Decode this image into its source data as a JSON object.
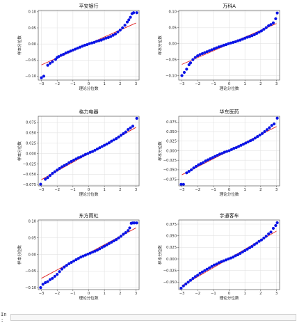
{
  "chart_data": [
    {
      "type": "scatter",
      "title": "平安银行",
      "xlabel": "理论分位数",
      "ylabel": "样本分位数",
      "xlim": [
        -3.2,
        3.2
      ],
      "ylim": [
        -0.112,
        0.104
      ],
      "xticks": [
        -3,
        -2,
        -1,
        0,
        1,
        2,
        3
      ],
      "yticks": [
        -0.1,
        -0.05,
        0.0,
        0.05,
        0.1
      ],
      "ytick_labels": [
        "-0.10",
        "-0.05",
        "0.00",
        "0.05",
        "0.10"
      ],
      "x": [
        -3.0,
        -2.85,
        -2.6,
        -2.45,
        -2.3,
        -2.1,
        -2.0,
        -1.9,
        -1.75,
        -1.6,
        -1.45,
        -1.3,
        -1.15,
        -1.0,
        -0.85,
        -0.7,
        -0.55,
        -0.4,
        -0.25,
        -0.1,
        0.05,
        0.2,
        0.35,
        0.5,
        0.65,
        0.8,
        0.95,
        1.1,
        1.25,
        1.4,
        1.55,
        1.7,
        1.85,
        2.0,
        2.15,
        2.3,
        2.45,
        2.55,
        2.65,
        2.75,
        2.85,
        3.05
      ],
      "y": [
        -0.105,
        -0.1,
        -0.066,
        -0.06,
        -0.055,
        -0.048,
        -0.042,
        -0.039,
        -0.035,
        -0.032,
        -0.028,
        -0.025,
        -0.022,
        -0.019,
        -0.016,
        -0.013,
        -0.01,
        -0.007,
        -0.004,
        -0.002,
        0.001,
        0.003,
        0.005,
        0.008,
        0.01,
        0.012,
        0.015,
        0.018,
        0.02,
        0.023,
        0.027,
        0.031,
        0.037,
        0.043,
        0.05,
        0.058,
        0.068,
        0.075,
        0.083,
        0.094,
        0.097,
        0.097
      ],
      "fit_line": {
        "x": [
          -3,
          3
        ],
        "y": [
          -0.065,
          0.065
        ]
      },
      "colors": {
        "points": "#0a14e6",
        "line": "#e02020"
      }
    },
    {
      "type": "scatter",
      "title": "万科A",
      "xlabel": "理论分位数",
      "ylabel": "样本分位数",
      "xlim": [
        -3.2,
        3.2
      ],
      "ylim": [
        -0.114,
        0.104
      ],
      "xticks": [
        -3,
        -2,
        -1,
        0,
        1,
        2,
        3
      ],
      "yticks": [
        -0.1,
        -0.05,
        0.0,
        0.05,
        0.1
      ],
      "ytick_labels": [
        "-0.10",
        "-0.05",
        "0.00",
        "0.05",
        "0.10"
      ],
      "x": [
        -3.0,
        -2.85,
        -2.7,
        -2.55,
        -2.45,
        -2.3,
        -2.15,
        -2.0,
        -1.85,
        -1.7,
        -1.55,
        -1.4,
        -1.25,
        -1.1,
        -0.95,
        -0.8,
        -0.65,
        -0.5,
        -0.35,
        -0.2,
        -0.05,
        0.1,
        0.25,
        0.4,
        0.55,
        0.7,
        0.85,
        1.0,
        1.15,
        1.3,
        1.45,
        1.6,
        1.75,
        1.9,
        2.05,
        2.2,
        2.35,
        2.5,
        2.65,
        2.8,
        2.95,
        3.05
      ],
      "y": [
        -0.1,
        -0.09,
        -0.08,
        -0.066,
        -0.06,
        -0.05,
        -0.043,
        -0.038,
        -0.034,
        -0.031,
        -0.028,
        -0.025,
        -0.022,
        -0.019,
        -0.016,
        -0.013,
        -0.01,
        -0.008,
        -0.005,
        -0.003,
        0.0,
        0.002,
        0.004,
        0.006,
        0.009,
        0.011,
        0.014,
        0.017,
        0.02,
        0.022,
        0.025,
        0.028,
        0.032,
        0.036,
        0.04,
        0.045,
        0.05,
        0.056,
        0.06,
        0.065,
        0.078,
        0.096
      ],
      "fit_line": {
        "x": [
          -3,
          3
        ],
        "y": [
          -0.065,
          0.063
        ]
      },
      "colors": {
        "points": "#0a14e6",
        "line": "#e02020"
      }
    },
    {
      "type": "scatter",
      "title": "格力电器",
      "xlabel": "理论分位数",
      "ylabel": "样本分位数",
      "xlim": [
        -3.2,
        3.2
      ],
      "ylim": [
        -0.078,
        0.09
      ],
      "xticks": [
        -3,
        -2,
        -1,
        0,
        1,
        2,
        3
      ],
      "yticks": [
        -0.075,
        -0.05,
        -0.025,
        0.0,
        0.025,
        0.05,
        0.075
      ],
      "ytick_labels": [
        "-0.075",
        "-0.050",
        "-0.025",
        "0.000",
        "0.025",
        "0.050",
        "0.075"
      ],
      "x": [
        -3.05,
        -2.75,
        -2.6,
        -2.45,
        -2.3,
        -2.15,
        -2.0,
        -1.85,
        -1.7,
        -1.55,
        -1.4,
        -1.25,
        -1.1,
        -0.95,
        -0.8,
        -0.65,
        -0.5,
        -0.35,
        -0.2,
        -0.05,
        0.1,
        0.25,
        0.4,
        0.55,
        0.7,
        0.85,
        1.0,
        1.15,
        1.3,
        1.45,
        1.6,
        1.75,
        1.9,
        2.05,
        2.2,
        2.35,
        2.5,
        2.65,
        2.8,
        3.05
      ],
      "y": [
        -0.074,
        -0.062,
        -0.058,
        -0.053,
        -0.048,
        -0.044,
        -0.04,
        -0.036,
        -0.032,
        -0.029,
        -0.026,
        -0.022,
        -0.019,
        -0.016,
        -0.013,
        -0.01,
        -0.008,
        -0.005,
        -0.002,
        0.0,
        0.003,
        0.005,
        0.008,
        0.011,
        0.014,
        0.017,
        0.02,
        0.023,
        0.026,
        0.03,
        0.033,
        0.036,
        0.04,
        0.044,
        0.048,
        0.052,
        0.058,
        0.062,
        0.066,
        0.085
      ],
      "fit_line": {
        "x": [
          -3,
          3
        ],
        "y": [
          -0.063,
          0.063
        ]
      },
      "colors": {
        "points": "#0a14e6",
        "line": "#e02020"
      }
    },
    {
      "type": "scatter",
      "title": "华东医药",
      "xlabel": "理论分位数",
      "ylabel": "样本分位数",
      "xlim": [
        -3.2,
        3.2
      ],
      "ylim": [
        -0.092,
        0.09
      ],
      "xticks": [
        -3,
        -2,
        -1,
        0,
        1,
        2,
        3
      ],
      "yticks": [
        -0.075,
        -0.05,
        -0.025,
        0.0,
        0.025,
        0.05,
        0.075
      ],
      "ytick_labels": [
        "-0.075",
        "-0.050",
        "-0.025",
        "0.000",
        "0.025",
        "0.050",
        "0.075"
      ],
      "x": [
        -3.05,
        -2.9,
        -2.7,
        -2.55,
        -2.4,
        -2.25,
        -2.1,
        -1.95,
        -1.8,
        -1.65,
        -1.5,
        -1.35,
        -1.2,
        -1.05,
        -0.9,
        -0.75,
        -0.6,
        -0.45,
        -0.3,
        -0.15,
        0.0,
        0.15,
        0.3,
        0.45,
        0.6,
        0.75,
        0.9,
        1.05,
        1.2,
        1.35,
        1.5,
        1.65,
        1.8,
        1.95,
        2.1,
        2.25,
        2.4,
        2.55,
        2.7,
        2.85,
        3.05
      ],
      "y": [
        -0.088,
        -0.088,
        -0.058,
        -0.054,
        -0.05,
        -0.045,
        -0.041,
        -0.037,
        -0.034,
        -0.031,
        -0.027,
        -0.024,
        -0.021,
        -0.018,
        -0.015,
        -0.012,
        -0.009,
        -0.007,
        -0.004,
        -0.002,
        0.0,
        0.003,
        0.006,
        0.008,
        0.011,
        0.014,
        0.017,
        0.02,
        0.023,
        0.026,
        0.029,
        0.033,
        0.037,
        0.041,
        0.045,
        0.05,
        0.055,
        0.06,
        0.066,
        0.07,
        0.085
      ],
      "fit_line": {
        "x": [
          -3,
          3
        ],
        "y": [
          -0.063,
          0.063
        ]
      },
      "colors": {
        "points": "#0a14e6",
        "line": "#e02020"
      }
    },
    {
      "type": "scatter",
      "title": "东方雨虹",
      "xlabel": "理论分位数",
      "ylabel": "样本分位数",
      "xlim": [
        -3.2,
        3.2
      ],
      "ylim": [
        -0.106,
        0.104
      ],
      "xticks": [
        -3,
        -2,
        -1,
        0,
        1,
        2,
        3
      ],
      "yticks": [
        -0.1,
        -0.05,
        0.0,
        0.05,
        0.1
      ],
      "ytick_labels": [
        "-0.10",
        "-0.05",
        "0.00",
        "0.05",
        "0.10"
      ],
      "x": [
        -3.05,
        -2.9,
        -2.75,
        -2.6,
        -2.45,
        -2.3,
        -2.15,
        -2.0,
        -1.85,
        -1.7,
        -1.55,
        -1.4,
        -1.25,
        -1.1,
        -0.95,
        -0.8,
        -0.65,
        -0.5,
        -0.35,
        -0.2,
        -0.05,
        0.1,
        0.25,
        0.4,
        0.55,
        0.7,
        0.85,
        1.0,
        1.15,
        1.3,
        1.45,
        1.6,
        1.75,
        1.9,
        2.05,
        2.2,
        2.35,
        2.5,
        2.6,
        2.7,
        2.8,
        2.9,
        3.05
      ],
      "y": [
        -0.1,
        -0.09,
        -0.085,
        -0.082,
        -0.076,
        -0.072,
        -0.066,
        -0.06,
        -0.052,
        -0.044,
        -0.038,
        -0.033,
        -0.028,
        -0.024,
        -0.02,
        -0.016,
        -0.012,
        -0.008,
        -0.005,
        -0.002,
        0.001,
        0.004,
        0.007,
        0.01,
        0.013,
        0.017,
        0.021,
        0.025,
        0.029,
        0.033,
        0.037,
        0.041,
        0.045,
        0.05,
        0.055,
        0.061,
        0.066,
        0.072,
        0.08,
        0.094,
        0.095,
        0.095,
        0.095
      ],
      "fit_line": {
        "x": [
          -3,
          3
        ],
        "y": [
          -0.072,
          0.08
        ]
      },
      "colors": {
        "points": "#0a14e6",
        "line": "#e02020"
      }
    },
    {
      "type": "scatter",
      "title": "宇通客车",
      "xlabel": "理论分位数",
      "ylabel": "样本分位数",
      "xlim": [
        -3.2,
        3.2
      ],
      "ylim": [
        -0.066,
        0.084
      ],
      "xticks": [
        -3,
        -2,
        -1,
        0,
        1,
        2,
        3
      ],
      "yticks": [
        -0.05,
        -0.025,
        0.0,
        0.025,
        0.05,
        0.075
      ],
      "ytick_labels": [
        "-0.050",
        "-0.025",
        "0.000",
        "0.025",
        "0.050",
        "0.075"
      ],
      "x": [
        -3.05,
        -2.9,
        -2.75,
        -2.6,
        -2.45,
        -2.3,
        -2.15,
        -2.0,
        -1.85,
        -1.7,
        -1.55,
        -1.4,
        -1.25,
        -1.1,
        -0.95,
        -0.8,
        -0.65,
        -0.5,
        -0.35,
        -0.2,
        -0.05,
        0.1,
        0.25,
        0.4,
        0.55,
        0.7,
        0.85,
        1.0,
        1.15,
        1.3,
        1.45,
        1.6,
        1.75,
        1.9,
        2.05,
        2.2,
        2.35,
        2.5,
        2.65,
        2.8,
        2.95,
        3.05
      ],
      "y": [
        -0.063,
        -0.058,
        -0.054,
        -0.05,
        -0.046,
        -0.042,
        -0.038,
        -0.035,
        -0.031,
        -0.028,
        -0.025,
        -0.022,
        -0.019,
        -0.016,
        -0.013,
        -0.011,
        -0.008,
        -0.006,
        -0.004,
        -0.002,
        0.0,
        0.002,
        0.004,
        0.007,
        0.009,
        0.012,
        0.015,
        0.018,
        0.021,
        0.024,
        0.027,
        0.031,
        0.034,
        0.038,
        0.041,
        0.045,
        0.049,
        0.054,
        0.058,
        0.066,
        0.072,
        0.078
      ],
      "fit_line": {
        "x": [
          -3,
          3
        ],
        "y": [
          -0.058,
          0.06
        ]
      },
      "colors": {
        "points": "#0a14e6",
        "line": "#e02020"
      }
    }
  ],
  "console": {
    "prompt": "In :"
  }
}
